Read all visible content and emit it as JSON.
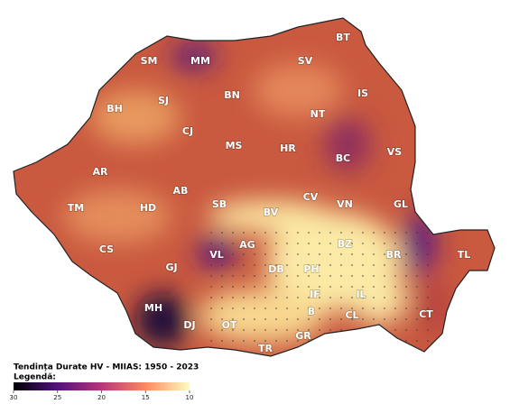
{
  "map": {
    "counties": [
      "BT",
      "SM",
      "MM",
      "SV",
      "BH",
      "SJ",
      "BN",
      "IS",
      "NT",
      "CJ",
      "MS",
      "HR",
      "BC",
      "VS",
      "AR",
      "AB",
      "CV",
      "VN",
      "GL",
      "TM",
      "HD",
      "SB",
      "BV",
      "BZ",
      "BR",
      "TL",
      "CS",
      "VL",
      "AG",
      "GJ",
      "DB",
      "PH",
      "IF",
      "IL",
      "MH",
      "B",
      "CL",
      "CT",
      "DJ",
      "OT",
      "GR",
      "TR"
    ]
  },
  "legend": {
    "title": "Tendința Durate HV - MIIAS: 1950 - 2023",
    "label": "Legendă:",
    "range": [
      30,
      10
    ],
    "ticks": [
      30,
      25,
      20,
      15,
      10
    ]
  }
}
